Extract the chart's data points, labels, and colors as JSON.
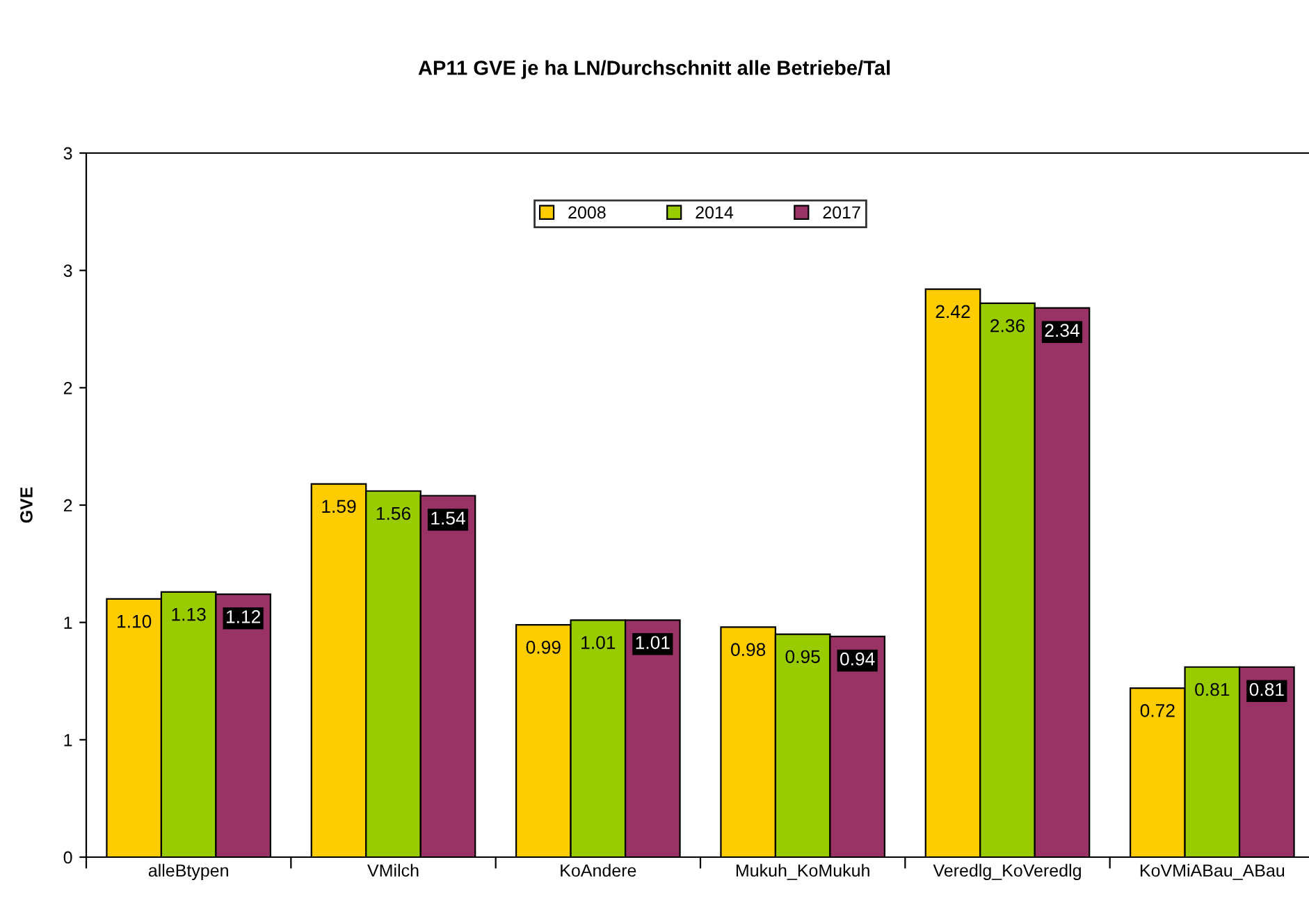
{
  "chart_data": {
    "type": "bar",
    "title": "AP11 GVE je ha LN/Durchschnitt alle Betriebe/Tal",
    "ylabel": "GVE",
    "categories": [
      "alleBtypen",
      "VMilch",
      "KoAndere",
      "Mukuh_KoMukuh",
      "Veredlg_KoVeredlg",
      "KoVMiABau_ABau"
    ],
    "series": [
      {
        "name": "2008",
        "color": "#ffcc00",
        "values": [
          1.1,
          1.59,
          0.99,
          0.98,
          2.42,
          0.72
        ],
        "value_labels": [
          "1.10",
          "1.59",
          "0.99",
          "0.98",
          "2.42",
          "0.72"
        ]
      },
      {
        "name": "2014",
        "color": "#99cc00",
        "values": [
          1.13,
          1.56,
          1.01,
          0.95,
          2.36,
          0.81
        ],
        "value_labels": [
          "1.13",
          "1.56",
          "1.01",
          "0.95",
          "2.36",
          "0.81"
        ]
      },
      {
        "name": "2017",
        "color": "#993366",
        "values": [
          1.12,
          1.54,
          1.01,
          0.94,
          2.34,
          0.81
        ],
        "value_labels": [
          "1.12",
          "1.54",
          "1.01",
          "0.94",
          "2.34",
          "0.81"
        ]
      }
    ],
    "ylim": [
      0,
      3.0
    ],
    "yticks": [
      0,
      {
        "value": 0.5,
        "label": "1"
      },
      1,
      {
        "value": 1.5,
        "label": "2"
      },
      2,
      {
        "value": 2.5,
        "label": "3"
      },
      3
    ],
    "grid": false,
    "legend": "top"
  }
}
